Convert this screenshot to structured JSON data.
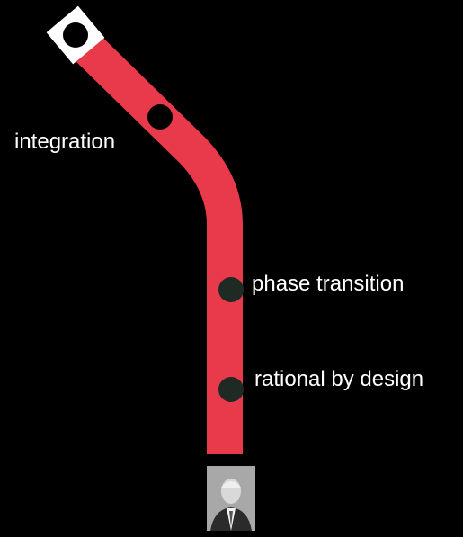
{
  "diagram": {
    "line_color": "#e83a4a",
    "terminus_fill": "#ffffff",
    "station_major_fill": "#000000",
    "station_minor_fill": "#1f2a24",
    "background": "#000000"
  },
  "stations": [
    {
      "id": "integration",
      "label": "integration"
    },
    {
      "id": "phase",
      "label": "phase transition"
    },
    {
      "id": "rational",
      "label": "rational by design"
    }
  ],
  "portrait": {
    "icon": "person-portrait-icon"
  }
}
